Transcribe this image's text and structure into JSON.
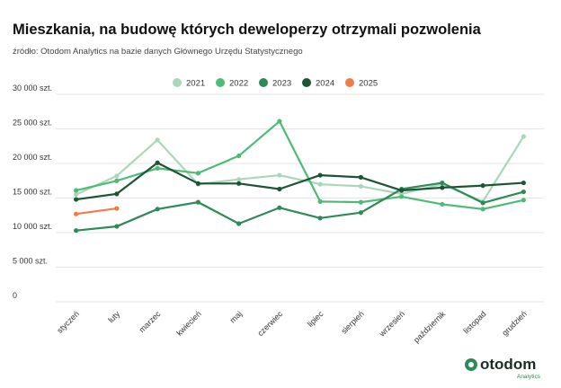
{
  "chart_data": {
    "type": "line",
    "title": "Mieszkania, na budowę których deweloperzy otrzymali pozwolenia",
    "subtitle": "źródło: Otodom Analytics na bazie danych Głównego Urzędu Statystycznego",
    "categories": [
      "styczeń",
      "luty",
      "marzec",
      "kwiecień",
      "maj",
      "czerwiec",
      "lipiec",
      "sierpień",
      "wrzesień",
      "październik",
      "listopad",
      "grudzień"
    ],
    "series": [
      {
        "name": "2021",
        "color": "#a9d8b8",
        "values": [
          15500,
          18200,
          23400,
          17000,
          17700,
          18300,
          17000,
          16700,
          15600,
          17000,
          14500,
          23900
        ]
      },
      {
        "name": "2022",
        "color": "#4dbb78",
        "values": [
          16100,
          17500,
          19300,
          18600,
          21100,
          26100,
          14500,
          14400,
          15200,
          14100,
          13400,
          14700
        ]
      },
      {
        "name": "2023",
        "color": "#2e8b57",
        "values": [
          10300,
          10900,
          13400,
          14400,
          11300,
          13600,
          12100,
          12900,
          16300,
          17200,
          14300,
          15900
        ]
      },
      {
        "name": "2024",
        "color": "#1b5535",
        "values": [
          14800,
          15600,
          20100,
          17100,
          17100,
          16300,
          18300,
          18000,
          16100,
          16500,
          16800,
          17200
        ]
      },
      {
        "name": "2025",
        "color": "#f07b46",
        "values": [
          12700,
          13500,
          null,
          null,
          null,
          null,
          null,
          null,
          null,
          null,
          null,
          null
        ]
      }
    ],
    "ylim": [
      0,
      30000
    ],
    "yticks": [
      0,
      {
        "value": 5000,
        "label": "5 000 szt."
      },
      {
        "value": 10000,
        "label": "10 000 szt."
      },
      {
        "value": 15000,
        "label": "15 000 szt."
      },
      {
        "value": 20000,
        "label": "20 000 szt."
      },
      {
        "value": 25000,
        "label": "25 000 szt."
      },
      {
        "value": 30000,
        "label": "30 000 szt."
      }
    ],
    "grid": true,
    "legend": "top"
  },
  "logo": {
    "name": "otodom",
    "sub": "Analytics"
  }
}
